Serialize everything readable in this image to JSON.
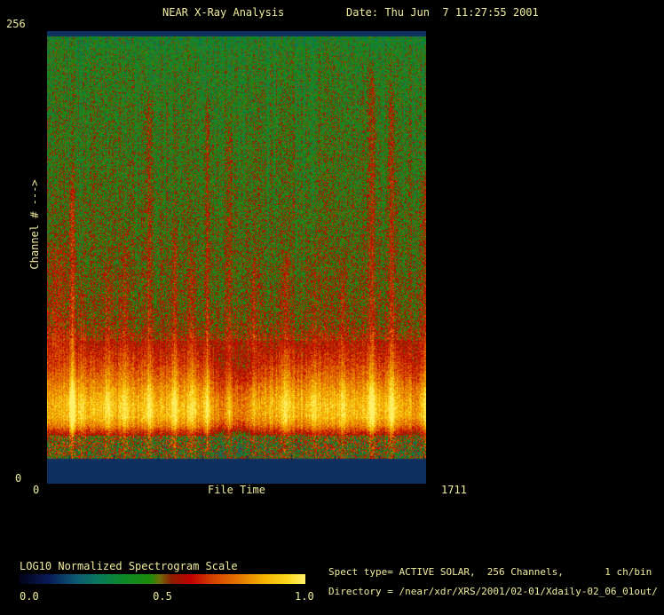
{
  "header": {
    "title": "NEAR X-Ray Analysis",
    "date": "Date: Thu Jun  7 11:27:55 2001"
  },
  "footer": {
    "spect_line": "Spect type= ACTIVE SOLAR,  256 Channels,       1 ch/bin",
    "directory_line": "Directory = /near/xdr/XRS/2001/02-01/Xdaily-02_06_01out/"
  },
  "colors": {
    "background": "#000000",
    "text": "#f0ec9e",
    "blank_band": "#0d3060"
  },
  "chart_data": {
    "type": "heatmap",
    "title": "NEAR X-Ray Analysis",
    "xlabel": "File Time",
    "ylabel": "Channel # --->",
    "xlim": [
      0,
      1711
    ],
    "ylim": [
      0,
      256
    ],
    "x_tick_labels": [
      "0",
      "1711"
    ],
    "y_tick_labels": [
      "0",
      "256"
    ],
    "grid": false,
    "legend": "colorbar-bottom-left",
    "annotations": [
      "Spect type= ACTIVE SOLAR,  256 Channels,       1 ch/bin",
      "Directory = /near/xdr/XRS/2001/02-01/Xdaily-02_06_01out/"
    ],
    "colorbar": {
      "label": "LOG10 Normalized Spectrogram Scale",
      "tick_labels": [
        "0.0",
        "0.5",
        "1.0"
      ],
      "stops": [
        [
          0.0,
          "#03031a"
        ],
        [
          0.1,
          "#081a56"
        ],
        [
          0.2,
          "#0c5a74"
        ],
        [
          0.28,
          "#0a7a5a"
        ],
        [
          0.36,
          "#0c8828"
        ],
        [
          0.46,
          "#1e8c0a"
        ],
        [
          0.49,
          "#6e6e08"
        ],
        [
          0.53,
          "#8c1e00"
        ],
        [
          0.6,
          "#c00000"
        ],
        [
          0.68,
          "#d44400"
        ],
        [
          0.77,
          "#e67800"
        ],
        [
          0.86,
          "#f5b400"
        ],
        [
          0.94,
          "#fcd81e"
        ],
        [
          1.0,
          "#fff06a"
        ]
      ]
    },
    "spectrogram": {
      "description": "Normalized log10 spectrogram: quiet green background at high channels, intense continuum band near low channels, vertical flare streaks, blanked (navy) edge channel bands.",
      "seed": 987654321,
      "blank_band_color": "#0d3060",
      "top_blank_rows": 6,
      "bottom_blank_rows": 28,
      "base_profile": [
        [
          0.0,
          0.375
        ],
        [
          0.05,
          0.41
        ],
        [
          0.3,
          0.44
        ],
        [
          0.5,
          0.465
        ],
        [
          0.62,
          0.485
        ],
        [
          0.68,
          0.505
        ],
        [
          0.71,
          0.56
        ],
        [
          0.76,
          0.64
        ],
        [
          0.8,
          0.72
        ],
        [
          0.84,
          0.82
        ],
        [
          0.87,
          0.88
        ],
        [
          0.9,
          0.87
        ],
        [
          0.92,
          0.78
        ],
        [
          0.94,
          0.6
        ],
        [
          0.948,
          0.5
        ],
        [
          1.0,
          0.46
        ]
      ],
      "band_center": 0.88,
      "band_sigma": 0.06,
      "flares": [
        {
          "x": 40,
          "sigma": 10,
          "reach": 0.45,
          "amp": 0.5,
          "band_amp": -0.15
        },
        {
          "x": 112,
          "sigma": 2.2,
          "reach": 0.3,
          "amp": 0.9,
          "band_amp": 1.3
        },
        {
          "x": 152,
          "sigma": 2.0,
          "reach": 0.55,
          "amp": 0.6,
          "band_amp": 0.3
        },
        {
          "x": 272,
          "sigma": 2.5,
          "reach": 0.5,
          "amp": 0.6,
          "band_amp": 0.4
        },
        {
          "x": 349,
          "sigma": 2.5,
          "reach": 0.45,
          "amp": 0.65,
          "band_amp": 0.4
        },
        {
          "x": 461,
          "sigma": 2.5,
          "reach": 0.1,
          "amp": 0.8,
          "band_amp": 0.5
        },
        {
          "x": 573,
          "sigma": 3.0,
          "reach": 0.42,
          "amp": 0.6,
          "band_amp": 0.5
        },
        {
          "x": 653,
          "sigma": 2.5,
          "reach": 0.48,
          "amp": 0.6,
          "band_amp": 0.4
        },
        {
          "x": 721,
          "sigma": 2.0,
          "reach": 0.12,
          "amp": 0.8,
          "band_amp": 0.5
        },
        {
          "x": 821,
          "sigma": 1.8,
          "reach": 0.15,
          "amp": 0.8,
          "band_amp": 0.6
        },
        {
          "x": 930,
          "sigma": 2.5,
          "reach": 0.5,
          "amp": 0.55,
          "band_amp": 0.3
        },
        {
          "x": 1074,
          "sigma": 2.5,
          "reach": 0.48,
          "amp": 0.55,
          "band_amp": 0.4
        },
        {
          "x": 1202,
          "sigma": 2.5,
          "reach": 0.45,
          "amp": 0.6,
          "band_amp": 0.5
        },
        {
          "x": 1334,
          "sigma": 2.5,
          "reach": 0.5,
          "amp": 0.55,
          "band_amp": 0.4
        },
        {
          "x": 1466,
          "sigma": 2.8,
          "reach": 0.04,
          "amp": 0.95,
          "band_amp": 0.9
        },
        {
          "x": 1555,
          "sigma": 2.5,
          "reach": 0.1,
          "amp": 0.8,
          "band_amp": 0.5
        },
        {
          "x": 1700,
          "sigma": 2.5,
          "reach": 0.3,
          "amp": 0.6,
          "band_amp": 0.4
        }
      ],
      "band_dim_regions": [
        {
          "x0": 0,
          "x1": 80,
          "dim": 0.08
        },
        {
          "x0": 750,
          "x1": 962,
          "dim": 0.1
        },
        {
          "x0": 1620,
          "x1": 1711,
          "dim": 0.05
        }
      ],
      "noise": {
        "pixel": 0.13,
        "hot_zone": 0.09,
        "column": 0.05,
        "speckle_zone_start": 0.945,
        "speckle": 0.24
      },
      "axis_tick_xs": [
        100,
        300,
        500,
        700,
        900,
        1100,
        1300,
        1500,
        1700
      ]
    }
  }
}
